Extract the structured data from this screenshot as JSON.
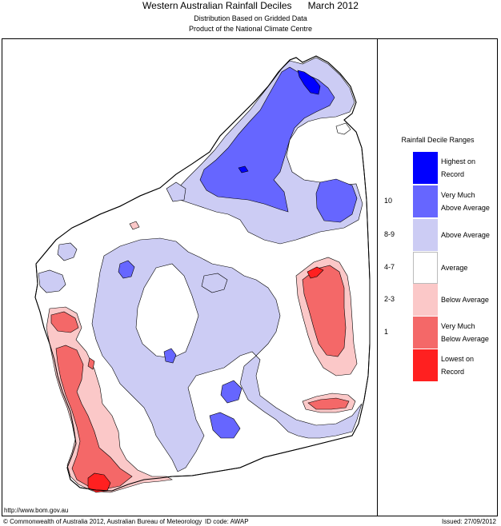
{
  "header": {
    "title": "Western Australian Rainfall Deciles",
    "period": "March 2012",
    "subtitle1": "Distribution Based on Gridded Data",
    "subtitle2": "Product of the National Climate Centre"
  },
  "legend": {
    "title": "Rainfall Decile Ranges",
    "items": [
      {
        "code": "",
        "label1": "Highest on",
        "label2": "Record",
        "color": "#0000ff"
      },
      {
        "code": "10",
        "label1": "Very Much",
        "label2": "Above Average",
        "color": "#6666ff"
      },
      {
        "code": "8-9",
        "label1": "Above Average",
        "label2": "",
        "color": "#ccccf4"
      },
      {
        "code": "4-7",
        "label1": "Average",
        "label2": "",
        "color": "#ffffff"
      },
      {
        "code": "2-3",
        "label1": "Below Average",
        "label2": "",
        "color": "#fbc8c8"
      },
      {
        "code": "1",
        "label1": "Very Much",
        "label2": "Below Average",
        "color": "#f46868"
      },
      {
        "code": "",
        "label1": "Lowest on",
        "label2": "Record",
        "color": "#ff2020"
      }
    ]
  },
  "map": {
    "region": "Western Australia",
    "colors": {
      "average": "#ffffff",
      "above_average": "#ccccf4",
      "very_much_above": "#6666ff",
      "highest": "#0000ff",
      "below_average": "#fbc8c8",
      "very_much_below": "#f46868",
      "lowest": "#ff2020"
    }
  },
  "footer": {
    "url": "http://www.bom.gov.au",
    "copyright": "© Commonwealth of Australia 2012, Australian Bureau of Meteorology",
    "id_code": "ID code: AWAP",
    "issued": "Issued: 27/09/2012"
  }
}
